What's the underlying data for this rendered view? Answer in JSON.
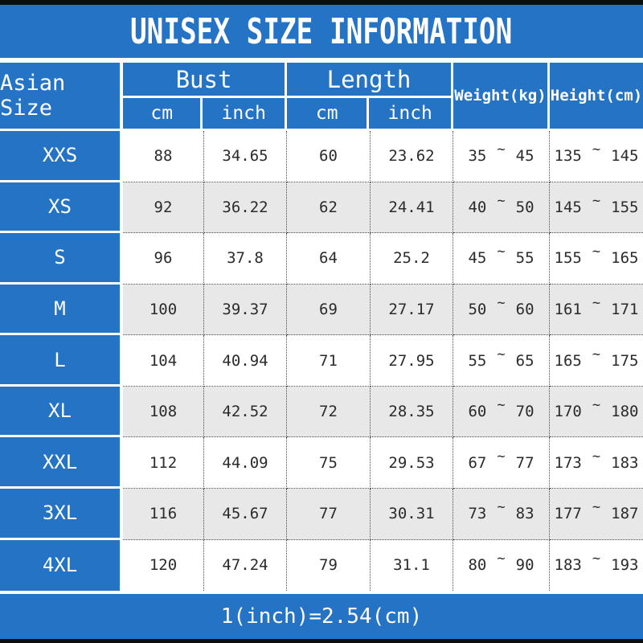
{
  "title": "UNISEX SIZE INFORMATION",
  "footer_note": "1(inch)=2.54(cm)",
  "glyphs": {
    "tilde": "~"
  },
  "colors": {
    "blue": "#2473c5",
    "alt_row": "#e8e8e8",
    "bar": "#0d0d0d"
  },
  "header": {
    "asian_size": "Asian Size",
    "bust": "Bust",
    "length": "Length",
    "cm": "cm",
    "inch": "inch",
    "weight": "Weight(kg)",
    "height": "Height(cm)"
  },
  "rows": [
    {
      "size": "XXS",
      "bust_cm": "88",
      "bust_inch": "34.65",
      "length_cm": "60",
      "length_inch": "23.62",
      "weight_min": "35",
      "weight_max": "45",
      "height_min": "135",
      "height_max": "145"
    },
    {
      "size": "XS",
      "bust_cm": "92",
      "bust_inch": "36.22",
      "length_cm": "62",
      "length_inch": "24.41",
      "weight_min": "40",
      "weight_max": "50",
      "height_min": "145",
      "height_max": "155"
    },
    {
      "size": "S",
      "bust_cm": "96",
      "bust_inch": "37.8",
      "length_cm": "64",
      "length_inch": "25.2",
      "weight_min": "45",
      "weight_max": "55",
      "height_min": "155",
      "height_max": "165"
    },
    {
      "size": "M",
      "bust_cm": "100",
      "bust_inch": "39.37",
      "length_cm": "69",
      "length_inch": "27.17",
      "weight_min": "50",
      "weight_max": "60",
      "height_min": "161",
      "height_max": "171"
    },
    {
      "size": "L",
      "bust_cm": "104",
      "bust_inch": "40.94",
      "length_cm": "71",
      "length_inch": "27.95",
      "weight_min": "55",
      "weight_max": "65",
      "height_min": "165",
      "height_max": "175"
    },
    {
      "size": "XL",
      "bust_cm": "108",
      "bust_inch": "42.52",
      "length_cm": "72",
      "length_inch": "28.35",
      "weight_min": "60",
      "weight_max": "70",
      "height_min": "170",
      "height_max": "180"
    },
    {
      "size": "XXL",
      "bust_cm": "112",
      "bust_inch": "44.09",
      "length_cm": "75",
      "length_inch": "29.53",
      "weight_min": "67",
      "weight_max": "77",
      "height_min": "173",
      "height_max": "183"
    },
    {
      "size": "3XL",
      "bust_cm": "116",
      "bust_inch": "45.67",
      "length_cm": "77",
      "length_inch": "30.31",
      "weight_min": "73",
      "weight_max": "83",
      "height_min": "177",
      "height_max": "187"
    },
    {
      "size": "4XL",
      "bust_cm": "120",
      "bust_inch": "47.24",
      "length_cm": "79",
      "length_inch": "31.1",
      "weight_min": "80",
      "weight_max": "90",
      "height_min": "183",
      "height_max": "193"
    }
  ],
  "chart_data": {
    "type": "table",
    "title": "UNISEX SIZE INFORMATION",
    "columns": [
      "Asian Size",
      "Bust cm",
      "Bust inch",
      "Length cm",
      "Length inch",
      "Weight(kg)",
      "Height(cm)"
    ],
    "rows": [
      [
        "XXS",
        "88",
        "34.65",
        "60",
        "23.62",
        "35 ~ 45",
        "135 ~ 145"
      ],
      [
        "XS",
        "92",
        "36.22",
        "62",
        "24.41",
        "40 ~ 50",
        "145 ~ 155"
      ],
      [
        "S",
        "96",
        "37.8",
        "64",
        "25.2",
        "45 ~ 55",
        "155 ~ 165"
      ],
      [
        "M",
        "100",
        "39.37",
        "69",
        "27.17",
        "50 ~ 60",
        "161 ~ 171"
      ],
      [
        "L",
        "104",
        "40.94",
        "71",
        "27.95",
        "55 ~ 65",
        "165 ~ 175"
      ],
      [
        "XL",
        "108",
        "42.52",
        "72",
        "28.35",
        "60 ~ 70",
        "170 ~ 180"
      ],
      [
        "XXL",
        "112",
        "44.09",
        "75",
        "29.53",
        "67 ~ 77",
        "173 ~ 183"
      ],
      [
        "3XL",
        "116",
        "45.67",
        "77",
        "30.31",
        "73 ~ 83",
        "177 ~ 187"
      ],
      [
        "4XL",
        "120",
        "47.24",
        "79",
        "31.1",
        "80 ~ 90",
        "183 ~ 193"
      ]
    ],
    "footnote": "1(inch)=2.54(cm)",
    "layout": "blue header band, blue first column, alternating white/grey data rows, dotted cell borders"
  }
}
